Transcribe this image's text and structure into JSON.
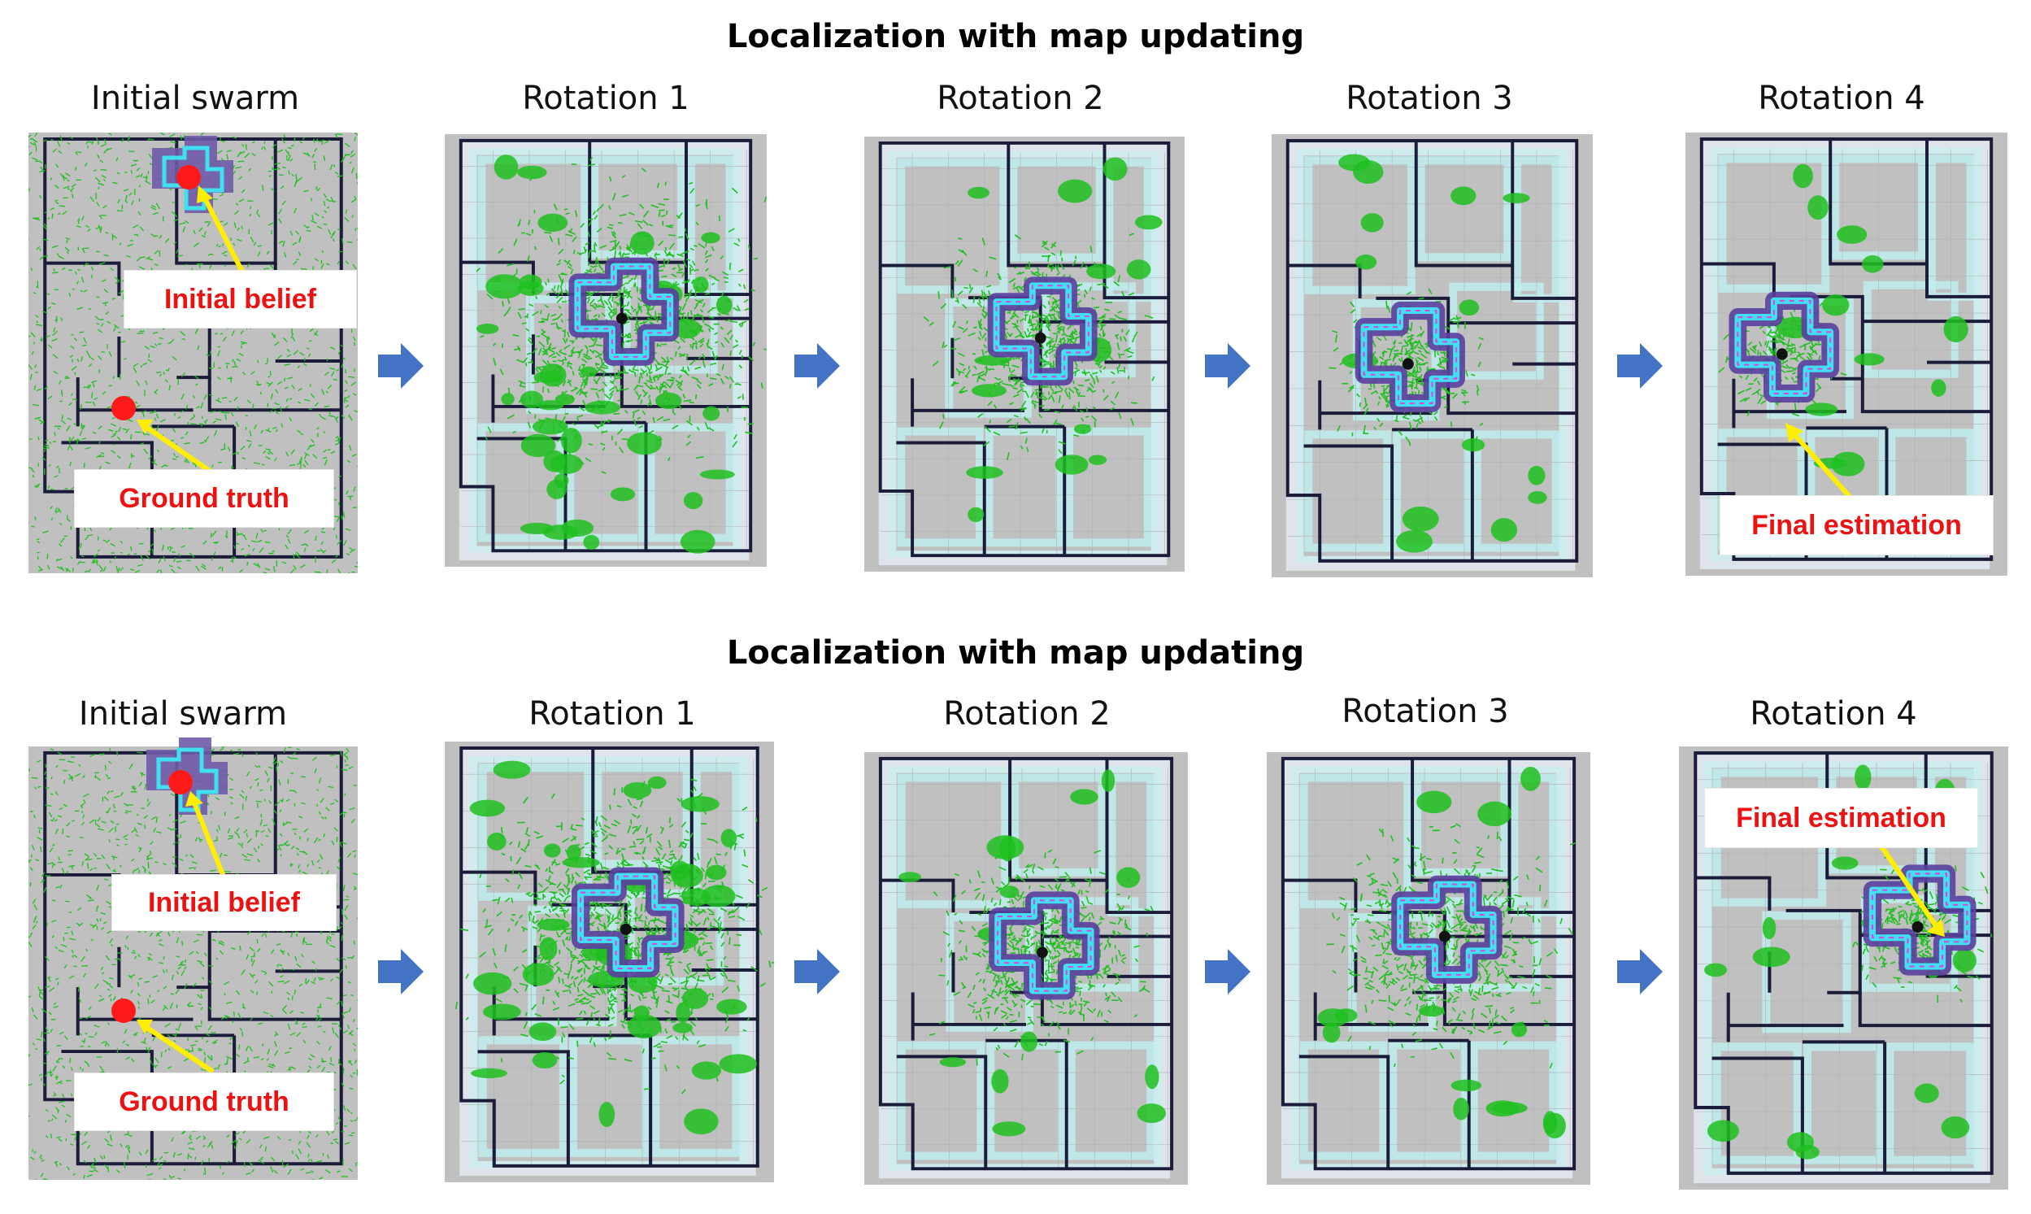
{
  "rows": [
    {
      "title": "Localization with map updating",
      "labels": [
        "Initial swarm",
        "Rotation 1",
        "Rotation 2",
        "Rotation 3",
        "Rotation 4"
      ],
      "callouts": {
        "initial_belief": "Initial belief",
        "ground_truth": "Ground truth",
        "final_estimation": "Final estimation"
      }
    },
    {
      "title": "Localization with map updating",
      "labels": [
        "Initial swarm",
        "Rotation 1",
        "Rotation 2",
        "Rotation 3",
        "Rotation 4"
      ],
      "callouts": {
        "initial_belief": "Initial belief",
        "ground_truth": "Ground truth",
        "final_estimation": "Final estimation"
      }
    }
  ],
  "colors": {
    "arrow": "#4472c4",
    "particles": "#1fbf1f",
    "walls": "#1b1b3a",
    "map_background": "#c0c0c0",
    "inflation": "#bff0f0",
    "belief_ring": "#5a3fa0",
    "belief_core": "#40e0f0",
    "marker": "#ff1a1a",
    "callout_text": "#ee1111",
    "pointer": "#ffee00"
  }
}
